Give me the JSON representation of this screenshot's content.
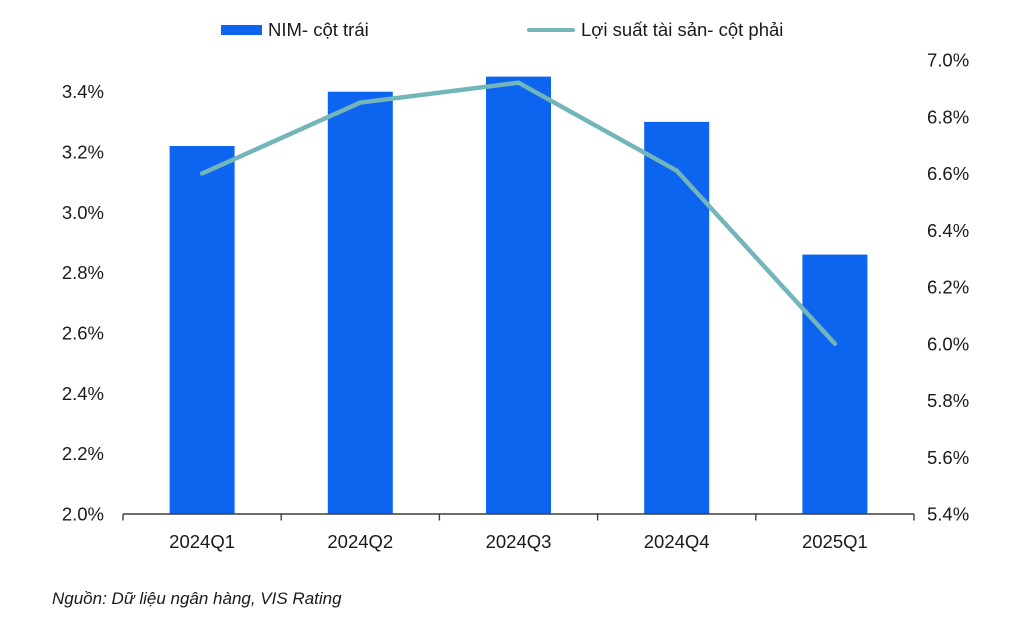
{
  "legend": {
    "items": [
      {
        "label": "NIM- cột trái",
        "marker": "bar-swatch",
        "color": "#0D64EE"
      },
      {
        "label": "Lợi suất tài sản- cột phải",
        "marker": "line-swatch",
        "color": "#72B5BB"
      }
    ]
  },
  "source_note": "Nguồn: Dữ liệu ngân hàng, VIS Rating",
  "chart_data": {
    "type": "combo",
    "title": "",
    "categories": [
      "2024Q1",
      "2024Q2",
      "2024Q3",
      "2024Q4",
      "2025Q1"
    ],
    "series": [
      {
        "name": "NIM- cột trái",
        "type": "bar",
        "axis": "left",
        "color": "#0D64EE",
        "values": [
          3.22,
          3.4,
          3.45,
          3.3,
          2.86
        ]
      },
      {
        "name": "Lợi suất tài sản- cột phải",
        "type": "line",
        "axis": "right",
        "color": "#72B5BB",
        "values": [
          6.6,
          6.85,
          6.92,
          6.61,
          6.0
        ]
      }
    ],
    "left_axis": {
      "unit": "%",
      "min": 2.0,
      "max": 3.4,
      "step": 0.2,
      "tick_labels": [
        "2.0%",
        "2.2%",
        "2.4%",
        "2.6%",
        "2.8%",
        "3.0%",
        "3.2%",
        "3.4%"
      ]
    },
    "right_axis": {
      "unit": "%",
      "min": 5.4,
      "max": 7.0,
      "step": 0.2,
      "tick_labels": [
        "5.4%",
        "5.6%",
        "5.8%",
        "6.0%",
        "6.2%",
        "6.4%",
        "6.6%",
        "6.8%",
        "7.0%"
      ]
    },
    "grid": false,
    "legend_position": "top",
    "axis_line_color": "#3F3F3F",
    "text_color": "#1A1A1A",
    "background_color": "#FFFFFF"
  }
}
